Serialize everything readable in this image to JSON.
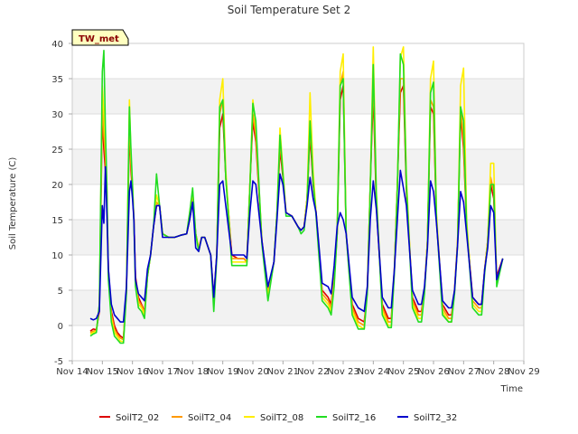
{
  "chart_data": {
    "type": "line",
    "title": "Soil Temperature Set 2",
    "xlabel": "Time",
    "ylabel": "Soil Temperature (C)",
    "site_label": "TW_met",
    "xlim": [
      14,
      29
    ],
    "ylim": [
      -5,
      40
    ],
    "x_ticks": [
      {
        "x": 14,
        "label": "Nov 14"
      },
      {
        "x": 15,
        "label": "Nov 15"
      },
      {
        "x": 16,
        "label": "Nov 16"
      },
      {
        "x": 17,
        "label": "Nov 17"
      },
      {
        "x": 18,
        "label": "Nov 18"
      },
      {
        "x": 19,
        "label": "Nov 19"
      },
      {
        "x": 20,
        "label": "Nov 20"
      },
      {
        "x": 21,
        "label": "Nov 21"
      },
      {
        "x": 22,
        "label": "Nov 22"
      },
      {
        "x": 23,
        "label": "Nov 23"
      },
      {
        "x": 24,
        "label": "Nov 24"
      },
      {
        "x": 25,
        "label": "Nov 25"
      },
      {
        "x": 26,
        "label": "Nov 26"
      },
      {
        "x": 27,
        "label": "Nov 27"
      },
      {
        "x": 28,
        "label": "Nov 28"
      },
      {
        "x": 29,
        "label": "Nov 29"
      }
    ],
    "y_ticks": [
      {
        "y": -5,
        "label": "-5"
      },
      {
        "y": 0,
        "label": "0"
      },
      {
        "y": 5,
        "label": "5"
      },
      {
        "y": 10,
        "label": "10"
      },
      {
        "y": 15,
        "label": "15"
      },
      {
        "y": 20,
        "label": "20"
      },
      {
        "y": 25,
        "label": "25"
      },
      {
        "y": 30,
        "label": "30"
      },
      {
        "y": 35,
        "label": "35"
      },
      {
        "y": 40,
        "label": "40"
      }
    ],
    "grid": true,
    "legend_position": "bottom",
    "x": [
      14.6,
      14.7,
      14.8,
      14.9,
      15.0,
      15.05,
      15.1,
      15.15,
      15.2,
      15.3,
      15.4,
      15.5,
      15.6,
      15.7,
      15.8,
      15.9,
      15.95,
      16.0,
      16.05,
      16.1,
      16.2,
      16.3,
      16.4,
      16.5,
      16.6,
      16.7,
      16.8,
      16.9,
      17.0,
      17.2,
      17.4,
      17.6,
      17.8,
      17.9,
      18.0,
      18.1,
      18.2,
      18.3,
      18.4,
      18.6,
      18.7,
      18.8,
      18.9,
      19.0,
      19.1,
      19.3,
      19.5,
      19.7,
      19.8,
      19.9,
      20.0,
      20.1,
      20.3,
      20.5,
      20.7,
      20.8,
      20.9,
      21.0,
      21.1,
      21.3,
      21.5,
      21.6,
      21.7,
      21.8,
      21.9,
      22.0,
      22.1,
      22.3,
      22.5,
      22.6,
      22.7,
      22.8,
      22.9,
      23.0,
      23.1,
      23.3,
      23.5,
      23.7,
      23.8,
      23.9,
      24.0,
      24.1,
      24.3,
      24.5,
      24.6,
      24.7,
      24.8,
      24.9,
      25.0,
      25.1,
      25.3,
      25.5,
      25.6,
      25.7,
      25.8,
      25.9,
      26.0,
      26.1,
      26.3,
      26.5,
      26.6,
      26.7,
      26.8,
      26.9,
      27.0,
      27.1,
      27.3,
      27.5,
      27.6,
      27.7,
      27.8,
      27.9,
      28.0,
      28.1,
      28.3
    ],
    "series": [
      {
        "name": "SoilT2_02",
        "color": "#dd0000",
        "values": [
          -0.8,
          -0.5,
          -0.6,
          2.0,
          30.0,
          25.0,
          22.0,
          18.0,
          8.0,
          2.0,
          0.0,
          -1.0,
          -1.5,
          -1.8,
          5.0,
          28.0,
          22.0,
          19.0,
          15.0,
          7.0,
          4.0,
          3.0,
          2.0,
          7.0,
          10.0,
          14.0,
          17.0,
          17.0,
          13.0,
          12.5,
          12.5,
          12.8,
          13.0,
          15.0,
          17.5,
          13.0,
          11.0,
          12.5,
          12.5,
          10.0,
          4.0,
          10.0,
          28.0,
          30.0,
          21.0,
          10.0,
          9.5,
          9.5,
          9.0,
          20.0,
          29.0,
          26.0,
          12.0,
          5.0,
          9.0,
          16.0,
          25.0,
          21.0,
          16.0,
          15.5,
          14.0,
          13.5,
          14.0,
          18.0,
          27.0,
          20.0,
          16.0,
          5.0,
          4.0,
          3.0,
          7.0,
          13.0,
          32.0,
          34.0,
          13.0,
          3.0,
          1.0,
          0.5,
          5.0,
          20.0,
          33.0,
          17.0,
          3.0,
          1.0,
          1.0,
          8.0,
          20.0,
          33.0,
          34.0,
          19.0,
          4.0,
          2.0,
          2.0,
          5.0,
          12.0,
          31.0,
          30.0,
          15.0,
          3.0,
          1.5,
          1.5,
          5.0,
          12.0,
          30.0,
          25.0,
          14.0,
          4.0,
          3.0,
          3.0,
          8.0,
          12.0,
          20.0,
          18.0,
          7.0,
          9.5
        ]
      },
      {
        "name": "SoilT2_04",
        "color": "#ff9900",
        "values": [
          -1.0,
          -0.8,
          -0.7,
          2.5,
          32.0,
          27.0,
          24.0,
          19.0,
          7.5,
          1.5,
          -0.5,
          -1.3,
          -1.8,
          -2.0,
          5.0,
          30.0,
          23.0,
          19.5,
          15.0,
          6.5,
          3.5,
          2.8,
          1.8,
          7.0,
          10.0,
          14.0,
          17.5,
          17.0,
          13.0,
          12.5,
          12.5,
          12.8,
          13.0,
          15.5,
          18.0,
          13.0,
          11.0,
          12.5,
          12.5,
          10.0,
          3.5,
          10.0,
          30.0,
          32.0,
          21.0,
          9.5,
          9.5,
          9.5,
          9.0,
          20.0,
          30.0,
          27.0,
          12.0,
          4.5,
          9.0,
          16.0,
          26.0,
          21.5,
          16.0,
          15.5,
          14.0,
          13.5,
          14.0,
          18.0,
          28.0,
          21.0,
          16.0,
          4.5,
          3.5,
          2.5,
          6.5,
          13.0,
          34.0,
          36.0,
          13.0,
          2.5,
          0.5,
          0.0,
          5.0,
          20.0,
          35.0,
          18.0,
          2.5,
          0.5,
          0.5,
          8.0,
          20.0,
          35.0,
          35.0,
          20.0,
          3.5,
          1.5,
          1.5,
          5.0,
          12.0,
          32.0,
          31.0,
          15.0,
          2.5,
          1.0,
          1.0,
          5.0,
          12.0,
          31.0,
          26.0,
          14.0,
          3.5,
          2.5,
          2.5,
          8.0,
          12.0,
          21.0,
          19.0,
          6.5,
          9.5
        ]
      },
      {
        "name": "SoilT2_08",
        "color": "#ffee00",
        "values": [
          -1.2,
          -1.0,
          -0.8,
          3.0,
          34.0,
          30.0,
          26.0,
          20.0,
          7.0,
          1.0,
          -1.0,
          -1.6,
          -2.2,
          -2.3,
          5.0,
          32.0,
          24.0,
          20.0,
          15.0,
          6.0,
          3.0,
          2.5,
          1.5,
          7.0,
          10.0,
          14.0,
          18.5,
          17.0,
          13.0,
          12.5,
          12.5,
          12.8,
          13.0,
          16.0,
          19.0,
          13.0,
          11.0,
          12.5,
          12.5,
          10.0,
          3.0,
          10.0,
          32.0,
          35.0,
          22.0,
          9.0,
          9.0,
          9.0,
          9.0,
          20.0,
          32.0,
          28.0,
          12.0,
          4.0,
          9.0,
          16.0,
          28.0,
          22.0,
          16.0,
          15.5,
          14.0,
          13.5,
          14.0,
          18.0,
          33.0,
          22.0,
          16.0,
          4.0,
          3.0,
          2.0,
          6.0,
          13.0,
          36.0,
          38.5,
          13.0,
          2.0,
          0.0,
          -0.5,
          5.0,
          20.0,
          39.5,
          19.0,
          2.0,
          0.0,
          0.0,
          8.0,
          20.0,
          38.0,
          39.5,
          21.0,
          3.0,
          1.0,
          1.0,
          5.0,
          12.0,
          35.0,
          37.5,
          16.0,
          2.0,
          0.5,
          0.5,
          5.0,
          12.0,
          34.0,
          36.5,
          15.0,
          3.0,
          2.0,
          2.0,
          8.0,
          12.0,
          23.0,
          23.0,
          6.0,
          9.5
        ]
      },
      {
        "name": "SoilT2_16",
        "color": "#22dd22",
        "values": [
          -1.5,
          -1.2,
          -1.0,
          3.0,
          36.0,
          39.0,
          28.0,
          20.0,
          6.5,
          0.5,
          -1.5,
          -2.0,
          -2.5,
          -2.5,
          4.5,
          31.0,
          25.0,
          20.0,
          14.5,
          5.5,
          2.5,
          2.0,
          1.0,
          7.0,
          10.0,
          14.0,
          21.5,
          17.0,
          13.0,
          12.5,
          12.5,
          12.8,
          13.0,
          16.0,
          19.5,
          13.0,
          10.5,
          12.5,
          12.5,
          10.0,
          2.0,
          9.5,
          31.0,
          32.0,
          21.0,
          8.5,
          8.5,
          8.5,
          8.5,
          19.5,
          31.5,
          29.0,
          11.5,
          3.5,
          9.0,
          16.0,
          27.0,
          21.5,
          15.5,
          15.5,
          14.0,
          13.0,
          13.5,
          17.5,
          29.0,
          20.5,
          15.5,
          3.5,
          2.5,
          1.5,
          5.5,
          13.0,
          34.0,
          35.0,
          13.0,
          1.5,
          -0.5,
          -0.5,
          4.5,
          19.5,
          37.0,
          18.5,
          1.5,
          -0.3,
          -0.3,
          7.5,
          19.5,
          38.5,
          37.0,
          20.0,
          2.5,
          0.5,
          0.5,
          4.5,
          11.5,
          33.0,
          34.5,
          15.0,
          1.5,
          0.5,
          0.5,
          4.5,
          11.5,
          31.0,
          29.0,
          14.0,
          2.5,
          1.5,
          1.5,
          7.5,
          11.5,
          20.0,
          20.0,
          5.5,
          9.5
        ]
      },
      {
        "name": "SoilT2_32",
        "color": "#0000cc",
        "values": [
          1.0,
          0.8,
          1.0,
          2.0,
          17.0,
          14.5,
          22.5,
          16.0,
          8.0,
          3.0,
          1.5,
          1.0,
          0.5,
          0.5,
          5.5,
          19.0,
          20.5,
          18.0,
          15.0,
          6.5,
          4.5,
          4.0,
          3.5,
          8.0,
          10.0,
          14.0,
          17.0,
          17.0,
          12.5,
          12.5,
          12.5,
          12.8,
          13.0,
          15.0,
          17.5,
          11.0,
          10.5,
          12.5,
          12.5,
          10.0,
          4.0,
          10.0,
          20.0,
          20.5,
          17.0,
          10.0,
          10.0,
          10.0,
          9.5,
          16.0,
          20.5,
          20.0,
          12.0,
          5.5,
          9.0,
          15.0,
          21.5,
          20.0,
          16.0,
          15.5,
          14.0,
          13.5,
          14.0,
          17.0,
          21.0,
          18.0,
          16.0,
          6.0,
          5.5,
          4.5,
          8.5,
          14.0,
          16.0,
          15.0,
          13.0,
          4.0,
          2.5,
          2.0,
          5.5,
          15.0,
          20.5,
          16.5,
          4.0,
          2.5,
          2.5,
          8.0,
          15.0,
          22.0,
          19.5,
          17.0,
          5.0,
          3.0,
          3.0,
          5.5,
          11.0,
          20.5,
          19.0,
          14.5,
          3.5,
          2.5,
          2.5,
          5.0,
          11.5,
          19.0,
          17.5,
          13.0,
          4.0,
          3.0,
          3.0,
          8.0,
          11.0,
          17.0,
          16.0,
          6.5,
          9.5
        ]
      }
    ]
  }
}
